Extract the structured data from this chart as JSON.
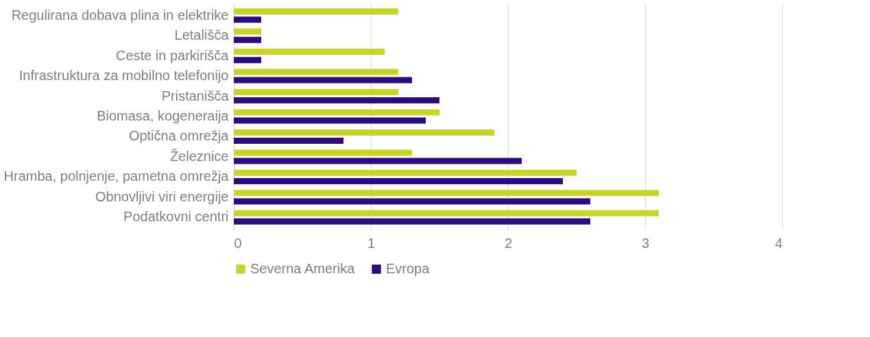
{
  "chart_data": {
    "type": "bar",
    "orientation": "horizontal",
    "categories": [
      "Regulirana dobava plina in elektrike",
      "Letališča",
      "Ceste in parkirišča",
      "Infrastruktura za mobilno telefonijo",
      "Pristanišča",
      "Biomasa, kogeneraija",
      "Optična omrežja",
      "Železnice",
      "Hramba, polnjenje, pametna omrežja",
      "Obnovljivi viri energije",
      "Podatkovni centri"
    ],
    "series": [
      {
        "name": "Severna Amerika",
        "color": "#c8d42c",
        "values": [
          1.2,
          0.2,
          1.1,
          1.2,
          1.2,
          1.5,
          1.9,
          1.3,
          2.5,
          3.1,
          3.1
        ]
      },
      {
        "name": "Evropa",
        "color": "#2e0a7a",
        "values": [
          0.2,
          0.2,
          0.2,
          1.3,
          1.5,
          1.4,
          0.8,
          2.1,
          2.4,
          2.6,
          2.6
        ]
      }
    ],
    "xlim": [
      0,
      4
    ],
    "xticks": [
      0,
      1,
      2,
      3,
      4
    ],
    "grid": "x",
    "legend": "bottom"
  }
}
